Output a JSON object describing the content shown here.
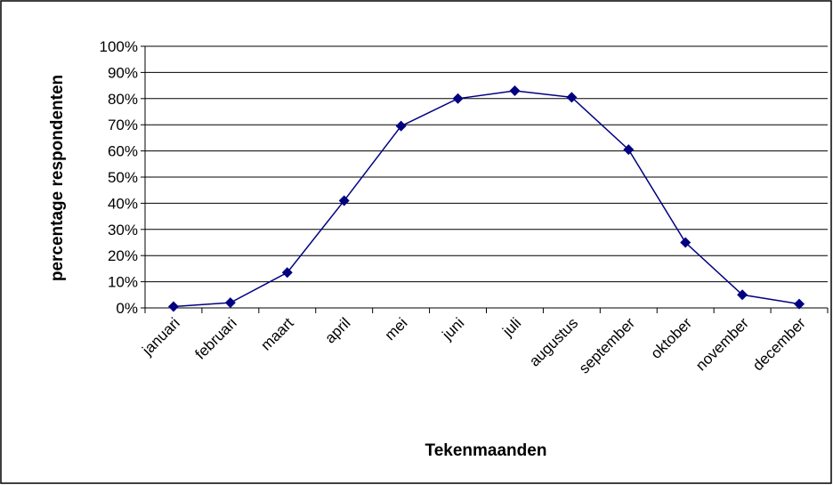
{
  "chart_data": {
    "type": "line",
    "x_label": "Tekenmaanden",
    "y_label": "percentage respondenten",
    "categories": [
      "januari",
      "februari",
      "maart",
      "april",
      "mei",
      "juni",
      "juli",
      "augustus",
      "september",
      "oktober",
      "november",
      "december"
    ],
    "series": [
      {
        "name": "percentage respondenten",
        "color": "#000080",
        "values": [
          0.5,
          2,
          13.5,
          41,
          69.5,
          80,
          83,
          80.5,
          60.5,
          25,
          5,
          1.5
        ]
      }
    ],
    "ylim": [
      0,
      100
    ],
    "yticks": [
      {
        "value": 0,
        "label": "0%"
      },
      {
        "value": 10,
        "label": "10%"
      },
      {
        "value": 20,
        "label": "20%"
      },
      {
        "value": 30,
        "label": "30%"
      },
      {
        "value": 40,
        "label": "40%"
      },
      {
        "value": 50,
        "label": "50%"
      },
      {
        "value": 60,
        "label": "60%"
      },
      {
        "value": 70,
        "label": "70%"
      },
      {
        "value": 80,
        "label": "80%"
      },
      {
        "value": 90,
        "label": "90%"
      },
      {
        "value": 100,
        "label": "100%"
      }
    ],
    "grid": true,
    "legend": false
  }
}
